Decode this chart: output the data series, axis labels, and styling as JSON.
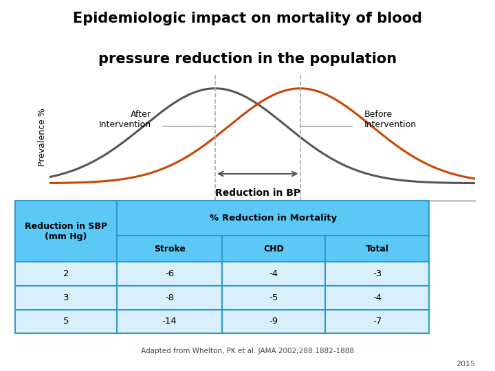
{
  "title_line1": "Epidemiologic impact on mortality of blood",
  "title_line2": "pressure reduction in the population",
  "title_fontsize": 15,
  "title_fontweight": "bold",
  "bg_color": "#ffffff",
  "curve_before_color": "#cc4400",
  "curve_after_color": "#555555",
  "curve_before_mean": 5.8,
  "curve_after_mean": 4.0,
  "curve_std": 1.5,
  "ylabel": "Prevalence %",
  "xlabel": "Reduction in BP",
  "after_label": "After\nIntervention",
  "before_label": "Before\nIntervention",
  "table_header_bg": "#5bc8f5",
  "table_row_bg": "#d9f0fb",
  "table_border_color": "#3399cc",
  "table_rows": [
    [
      "2",
      "-6",
      "-4",
      "-3"
    ],
    [
      "3",
      "-8",
      "-5",
      "-4"
    ],
    [
      "5",
      "-14",
      "-9",
      "-7"
    ]
  ],
  "footer_text": "Adapted from Whelton, PK et al. JAMA 2002;288:1882-1888",
  "year_text": "2015",
  "arrow_color": "#555555",
  "dashed_line_color": "#aaaaaa",
  "horiz_line_color": "#aaaaaa",
  "axis_line_color": "#888888"
}
